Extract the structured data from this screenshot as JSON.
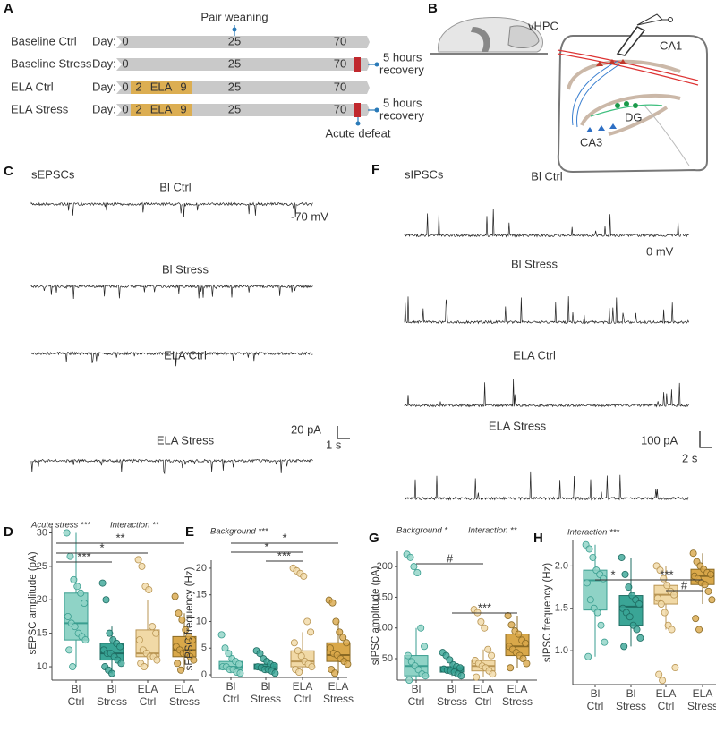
{
  "timeline": {
    "label": "A",
    "pair_weaning": "Pair weaning",
    "acute_defeat": "Acute defeat",
    "rows": [
      {
        "name": "Baseline Ctrl",
        "day": "Day:",
        "ticks": [
          "0",
          "25",
          "70"
        ]
      },
      {
        "name": "Baseline Stress",
        "day": "Day:",
        "ticks": [
          "0",
          "25",
          "70"
        ],
        "stress": true,
        "note": [
          "5 hours",
          "recovery"
        ]
      },
      {
        "name": "ELA Ctrl",
        "day": "Day:",
        "ticks": [
          "0",
          "25",
          "70"
        ],
        "ela": [
          "2",
          "ELA",
          "9"
        ]
      },
      {
        "name": "ELA Stress",
        "day": "Day:",
        "ticks": [
          "0",
          "25",
          "70"
        ],
        "ela": [
          "2",
          "ELA",
          "9"
        ],
        "stress": true,
        "note": [
          "5 hours",
          "recovery"
        ]
      }
    ]
  },
  "diagram": {
    "label": "B",
    "regions": [
      "vHPC",
      "CA1",
      "DG",
      "CA3"
    ]
  },
  "traces": [
    {
      "label": "C",
      "title": "sEPSCs",
      "recordings": [
        "Bl Ctrl",
        "Bl Stress",
        "ELA Ctrl",
        "ELA Stress"
      ],
      "holding": "-70 mV",
      "scale": [
        "20 pA",
        "1 s"
      ]
    },
    {
      "label": "F",
      "title": "sIPSCs",
      "recordings": [
        "Bl Ctrl",
        "Bl Stress",
        "ELA Ctrl",
        "ELA Stress"
      ],
      "holding": "0 mV",
      "scale": [
        "100 pA",
        "2 s"
      ]
    }
  ],
  "chart_data": [
    {
      "type": "box",
      "label": "D",
      "notes": [
        "Acute stress ***",
        "Interaction **"
      ],
      "ylabel": "sEPSC amplitude (pA)",
      "categories": [
        [
          "Bl",
          "Ctrl"
        ],
        [
          "Bl",
          "Stress"
        ],
        [
          "ELA",
          "Ctrl"
        ],
        [
          "ELA",
          "Stress"
        ]
      ],
      "ylim": [
        8,
        31
      ],
      "yticks": [
        10,
        15,
        20,
        25,
        30
      ],
      "brackets": [
        {
          "label": "***",
          "from": 0,
          "to": 1
        },
        {
          "label": "*",
          "from": 0,
          "to": 2
        },
        {
          "label": "**",
          "from": 0,
          "to": 3
        }
      ],
      "boxes": [
        {
          "color": "#8fd3c6",
          "edgecolor": "#3a9e90",
          "whislo": 10,
          "q1": 14,
          "med": 16.5,
          "q3": 21,
          "whishi": 30,
          "points": [
            30,
            26.5,
            23,
            22,
            21,
            19.5,
            17.5,
            16.5,
            16,
            15,
            14.5,
            14,
            12.5,
            10
          ]
        },
        {
          "color": "#3aa596",
          "edgecolor": "#1f6d63",
          "whislo": 9,
          "q1": 11,
          "med": 12,
          "q3": 13.5,
          "whishi": 16,
          "points": [
            22.5,
            20,
            15,
            14,
            13.5,
            13,
            12.5,
            12,
            12,
            11.5,
            11,
            10.5,
            10,
            9.5,
            9
          ]
        },
        {
          "color": "#f1d9a6",
          "edgecolor": "#b99553",
          "whislo": 10,
          "q1": 11.5,
          "med": 12,
          "q3": 15.5,
          "whishi": 20,
          "points": [
            26,
            25,
            22,
            21.5,
            16,
            15,
            14,
            12.5,
            12,
            11.5,
            11.5,
            11,
            10.5,
            10
          ]
        },
        {
          "color": "#d9a84a",
          "edgecolor": "#8a6a24",
          "whislo": 9.5,
          "q1": 11.5,
          "med": 12.5,
          "q3": 14.5,
          "whishi": 18,
          "points": [
            20.5,
            18,
            17,
            15.5,
            14.5,
            14,
            13,
            12.5,
            12,
            12,
            11.5,
            11,
            10.5,
            9.5
          ]
        }
      ]
    },
    {
      "type": "box",
      "label": "E",
      "notes": [
        "Background ***"
      ],
      "ylabel": "sEPSC frequency (Hz)",
      "categories": [
        [
          "Bl",
          "Ctrl"
        ],
        [
          "Bl",
          "Stress"
        ],
        [
          "ELA",
          "Ctrl"
        ],
        [
          "ELA",
          "Stress"
        ]
      ],
      "ylim": [
        -0.5,
        21.5
      ],
      "yticks": [
        0,
        5,
        10,
        15,
        20
      ],
      "brackets": [
        {
          "label": "***",
          "from": 1,
          "to": 2
        },
        {
          "label": "*",
          "from": 0,
          "to": 2
        },
        {
          "label": "*",
          "from": 0,
          "to": 3
        }
      ],
      "boxes": [
        {
          "color": "#8fd3c6",
          "edgecolor": "#3a9e90",
          "whislo": 0.3,
          "q1": 1,
          "med": 1.5,
          "q3": 2.5,
          "whishi": 4,
          "points": [
            7.5,
            5,
            4,
            3,
            2.5,
            2,
            1.5,
            1.5,
            1,
            1,
            0.5,
            0.3
          ]
        },
        {
          "color": "#3aa596",
          "edgecolor": "#1f6d63",
          "whislo": 0.3,
          "q1": 1,
          "med": 1.5,
          "q3": 2,
          "whishi": 3,
          "points": [
            4.5,
            4,
            3,
            2.5,
            2,
            1.7,
            1.5,
            1.3,
            1,
            1,
            0.7,
            0.3
          ]
        },
        {
          "color": "#f1d9a6",
          "edgecolor": "#b99553",
          "whislo": 0.5,
          "q1": 1.5,
          "med": 2.5,
          "q3": 4.5,
          "whishi": 8,
          "points": [
            20,
            19.5,
            19,
            18.5,
            10,
            8,
            6,
            4.5,
            3.5,
            2.5,
            2,
            1.5,
            1,
            0.5
          ]
        },
        {
          "color": "#d9a84a",
          "edgecolor": "#8a6a24",
          "whislo": 0.3,
          "q1": 2.5,
          "med": 3.7,
          "q3": 6,
          "whishi": 10,
          "points": [
            14,
            13.5,
            10,
            8,
            7,
            6,
            5,
            4,
            3.7,
            3,
            2.5,
            2,
            1,
            0.3
          ]
        }
      ]
    },
    {
      "type": "box",
      "label": "G",
      "notes": [
        "Background *",
        "Interaction **"
      ],
      "ylabel": "sIPSC amplitude (pA)",
      "categories": [
        [
          "Bl",
          "Ctrl"
        ],
        [
          "Bl",
          "Stress"
        ],
        [
          "ELA",
          "Ctrl"
        ],
        [
          "ELA",
          "Stress"
        ]
      ],
      "ylim": [
        15,
        225
      ],
      "yticks": [
        50,
        100,
        150,
        200
      ],
      "brackets": [
        {
          "label": "#",
          "from": 0,
          "to": 2
        },
        {
          "label": "***",
          "from": 1,
          "to": 3
        }
      ],
      "boxes": [
        {
          "color": "#8fd3c6",
          "edgecolor": "#3a9e90",
          "whislo": 15,
          "q1": 22,
          "med": 38,
          "q3": 55,
          "whishi": 100,
          "points": [
            220,
            215,
            200,
            190,
            100,
            70,
            55,
            45,
            38,
            32,
            25,
            22,
            15
          ]
        },
        {
          "color": "#3aa596",
          "edgecolor": "#1f6d63",
          "whislo": 22,
          "q1": 28,
          "med": 33,
          "q3": 37,
          "whishi": 48,
          "points": [
            60,
            55,
            48,
            40,
            37,
            35,
            33,
            31,
            30,
            28,
            25,
            22
          ]
        },
        {
          "color": "#f1d9a6",
          "edgecolor": "#b99553",
          "whislo": 20,
          "q1": 30,
          "med": 38,
          "q3": 47,
          "whishi": 65,
          "points": [
            130,
            125,
            110,
            100,
            65,
            55,
            47,
            42,
            38,
            35,
            30,
            25,
            20
          ]
        },
        {
          "color": "#d9a84a",
          "edgecolor": "#8a6a24",
          "whislo": 35,
          "q1": 55,
          "med": 70,
          "q3": 90,
          "whishi": 120,
          "points": [
            120,
            105,
            95,
            90,
            80,
            75,
            70,
            65,
            60,
            55,
            50,
            42,
            35
          ]
        }
      ]
    },
    {
      "type": "box",
      "label": "H",
      "notes": [
        "Interaction ***"
      ],
      "ylabel": "sIPSC frequency (Hz)",
      "categories": [
        [
          "Bl",
          "Ctrl"
        ],
        [
          "Bl",
          "Stress"
        ],
        [
          "ELA",
          "Ctrl"
        ],
        [
          "ELA",
          "Stress"
        ]
      ],
      "ylim": [
        0.6,
        2.3
      ],
      "yticks": [
        {
          "value": 1,
          "label": "1.0"
        },
        1.5,
        {
          "value": 2,
          "label": "2.0"
        }
      ],
      "brackets": [
        {
          "label": "*",
          "from": 0,
          "to": 1
        },
        {
          "label": "***",
          "from": 1,
          "to": 3
        },
        {
          "label": "#",
          "from": 2,
          "to": 3
        }
      ],
      "boxes": [
        {
          "color": "#8fd3c6",
          "edgecolor": "#3a9e90",
          "whislo": 0.93,
          "q1": 1.48,
          "med": 1.83,
          "q3": 1.95,
          "whishi": 2.25,
          "points": [
            2.25,
            2.2,
            2.1,
            1.95,
            1.9,
            1.85,
            1.8,
            1.6,
            1.5,
            1.45,
            1.3,
            1.1,
            0.93
          ]
        },
        {
          "color": "#3aa596",
          "edgecolor": "#1f6d63",
          "whislo": 1.05,
          "q1": 1.3,
          "med": 1.52,
          "q3": 1.65,
          "whishi": 2.1,
          "points": [
            2.1,
            1.9,
            1.75,
            1.65,
            1.6,
            1.55,
            1.5,
            1.45,
            1.4,
            1.3,
            1.25,
            1.15,
            1.05
          ]
        },
        {
          "color": "#f1d9a6",
          "edgecolor": "#b99553",
          "whislo": 1.25,
          "q1": 1.55,
          "med": 1.66,
          "q3": 1.77,
          "whishi": 2.0,
          "points": [
            2.0,
            1.95,
            1.85,
            1.77,
            1.7,
            1.66,
            1.62,
            1.55,
            1.45,
            1.3,
            1.25,
            0.8,
            0.72,
            0.65
          ]
        },
        {
          "color": "#d9a84a",
          "edgecolor": "#8a6a24",
          "whislo": 1.55,
          "q1": 1.78,
          "med": 1.88,
          "q3": 1.96,
          "whishi": 2.15,
          "points": [
            2.15,
            2.05,
            2.0,
            1.96,
            1.92,
            1.9,
            1.88,
            1.85,
            1.8,
            1.78,
            1.7,
            1.6,
            1.38,
            1.25
          ]
        }
      ]
    }
  ]
}
